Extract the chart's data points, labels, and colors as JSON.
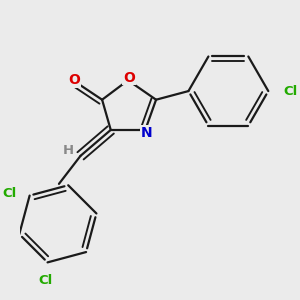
{
  "bg_color": "#ebebeb",
  "bond_color": "#1a1a1a",
  "atom_colors": {
    "O": "#dd0000",
    "N": "#0000cc",
    "Cl": "#22aa00",
    "H": "#888888",
    "C": "#1a1a1a"
  },
  "bond_lw": 1.6,
  "dbo": 0.022
}
